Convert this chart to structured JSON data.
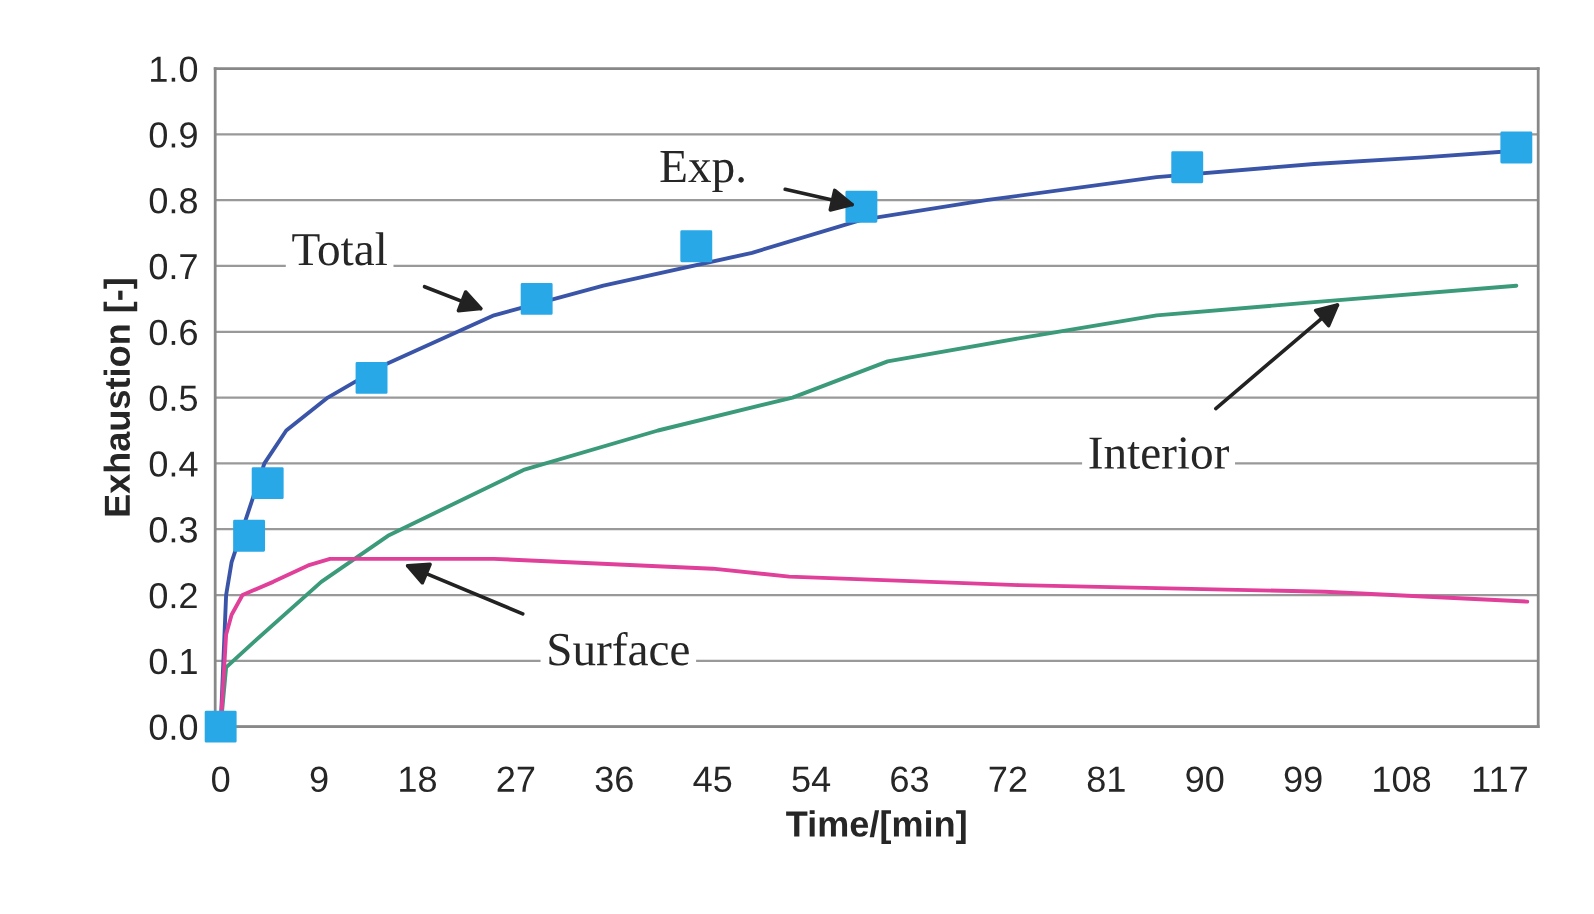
{
  "chart_data": {
    "type": "line",
    "xlabel": "Time/[min]",
    "ylabel": "Exhaustion [-]",
    "xlim": [
      -0.5,
      120.5
    ],
    "xticks": [
      0,
      9,
      18,
      27,
      36,
      45,
      54,
      63,
      72,
      81,
      90,
      99,
      108,
      117
    ],
    "ylim": [
      0,
      1
    ],
    "yticks": [
      {
        "value": 0,
        "label": "0.0"
      },
      0.1,
      0.2,
      0.3,
      0.4,
      0.5,
      0.6,
      0.7,
      0.8,
      0.9,
      {
        "value": 1,
        "label": "1.0"
      }
    ],
    "grid": "y",
    "legend": false,
    "series": [
      {
        "color": "#3a55a8",
        "x": [
          0,
          0.5,
          1,
          2,
          4,
          6,
          9.8,
          15,
          25,
          35,
          48.6,
          58.6,
          70,
          85.6,
          100,
          110,
          118.5
        ],
        "values": [
          0,
          0.2,
          0.25,
          0.3,
          0.4,
          0.45,
          0.5,
          0.55,
          0.625,
          0.67,
          0.72,
          0.77,
          0.8,
          0.835,
          0.855,
          0.865,
          0.875
        ]
      },
      {
        "color": "#3a9a7a",
        "x": [
          0,
          0.5,
          3,
          9.2,
          15.3,
          27.7,
          40,
          52.3,
          61,
          73,
          85.6,
          100,
          118.5
        ],
        "values": [
          0,
          0.09,
          0.128,
          0.22,
          0.29,
          0.39,
          0.45,
          0.5,
          0.555,
          0.59,
          0.625,
          0.645,
          0.67
        ]
      },
      {
        "color": "#e0409a",
        "x": [
          0,
          0.5,
          1,
          2,
          4.8,
          8,
          10,
          25,
          45,
          52,
          73,
          101,
          119.5
        ],
        "values": [
          0,
          0.14,
          0.17,
          0.2,
          0.22,
          0.245,
          0.255,
          0.255,
          0.24,
          0.228,
          0.215,
          0.205,
          0.19
        ]
      },
      {
        "type": "scatter",
        "color": "#29a8e8",
        "marker": "square",
        "x": [
          0,
          2.6,
          4.3,
          13.8,
          28.9,
          43.5,
          58.6,
          88.4,
          118.5
        ],
        "values": [
          0,
          0.29,
          0.37,
          0.53,
          0.65,
          0.73,
          0.79,
          0.85,
          0.88
        ]
      }
    ],
    "annotations": [
      {
        "text": "Exp.",
        "x": 58.6,
        "y": 0.79
      },
      {
        "text": "Total",
        "x": 24.6,
        "y": 0.63
      },
      {
        "text": "Interior",
        "x": 102.8,
        "y": 0.65
      },
      {
        "text": "Surface",
        "x": 16.3,
        "y": 0.25
      }
    ]
  }
}
